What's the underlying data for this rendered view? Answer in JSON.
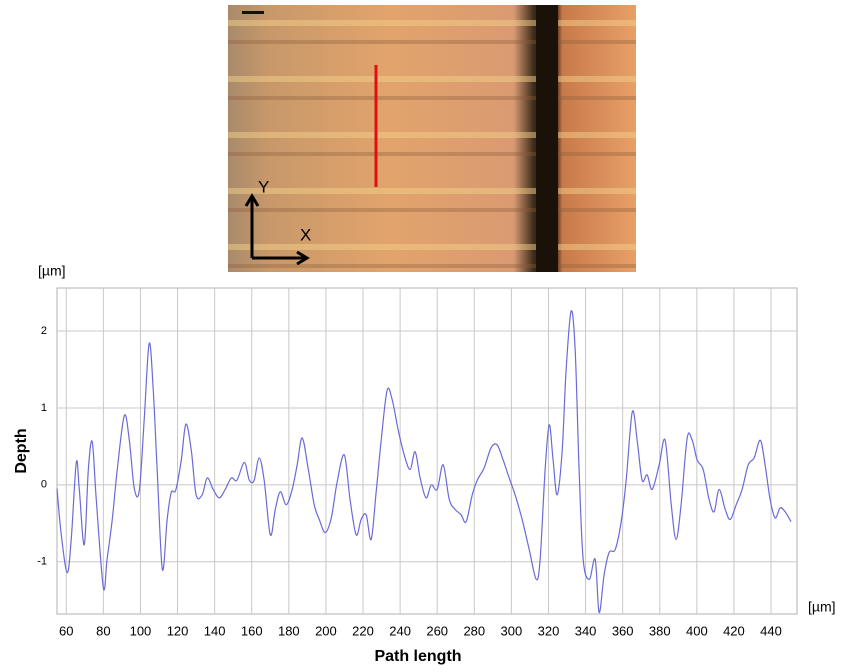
{
  "figure": {
    "image_labels": [
      "Y",
      "X"
    ]
  },
  "chart_data": {
    "type": "line",
    "y_label": "Depth",
    "x_label": "Path length",
    "y_unit": "[µm]",
    "x_unit": "[µm]",
    "xlim": [
      55,
      454
    ],
    "ylim": [
      -1.68,
      2.56
    ],
    "xticks": [
      60,
      80,
      100,
      120,
      140,
      160,
      180,
      200,
      220,
      240,
      260,
      280,
      300,
      320,
      340,
      360,
      380,
      400,
      420,
      440
    ],
    "yticks": [
      -1,
      0,
      1,
      2
    ],
    "grid": true,
    "series": [
      {
        "name": "Depth",
        "color": "#6a6ad8",
        "x": [
          55,
          57.3,
          60.5,
          62.7,
          65.4,
          67,
          69.7,
          71.9,
          74,
          76.2,
          80,
          82,
          84.8,
          87.5,
          91.3,
          94,
          96.7,
          99.4,
          102,
          104.7,
          106.9,
          109,
          111.8,
          114.4,
          116.6,
          119,
          122,
          124.5,
          127.4,
          130,
          133.3,
          136,
          139.2,
          142.5,
          145.7,
          149,
          152,
          156,
          158.7,
          161.3,
          164,
          166.7,
          170,
          172.7,
          175.4,
          178.6,
          181.8,
          184.5,
          187.2,
          190.5,
          193.7,
          196.4,
          199.6,
          202.9,
          206,
          209.9,
          213,
          216.3,
          219,
          221.7,
          224.4,
          227.1,
          229.8,
          233,
          235.8,
          239,
          242.2,
          245.4,
          248.1,
          250.8,
          254,
          256.8,
          260,
          263.2,
          266.5,
          269.7,
          272.9,
          275.6,
          278.9,
          281.6,
          285.3,
          289,
          292.3,
          295.6,
          298.8,
          302,
          305.8,
          309.6,
          313.4,
          315.5,
          318.2,
          320.4,
          322.5,
          324.7,
          327.4,
          329.5,
          332.2,
          334.4,
          336.5,
          338.7,
          342,
          345.2,
          347.3,
          350,
          352.7,
          356,
          359.2,
          361.9,
          365.2,
          367.9,
          370.5,
          373.2,
          375.9,
          379.7,
          382.9,
          386.2,
          388.8,
          391.5,
          394.8,
          397.5,
          400.2,
          403.4,
          406.6,
          409.3,
          412,
          415.3,
          418,
          421.2,
          424.4,
          427.7,
          430.9,
          434.2,
          436.8,
          439.5,
          442.2,
          444.9,
          447.6,
          450.8
        ],
        "values": [
          -0.05,
          -0.65,
          -1.14,
          -0.7,
          0.29,
          -0.05,
          -0.78,
          0.2,
          0.56,
          -0.2,
          -1.34,
          -0.97,
          -0.45,
          0.2,
          0.9,
          0.58,
          -0.05,
          -0.07,
          0.84,
          1.84,
          1.23,
          0.2,
          -1.1,
          -0.45,
          -0.1,
          -0.07,
          0.32,
          0.79,
          0.45,
          -0.13,
          -0.13,
          0.09,
          -0.06,
          -0.17,
          -0.06,
          0.09,
          0.06,
          0.29,
          0.06,
          0.06,
          0.35,
          0.06,
          -0.65,
          -0.32,
          -0.09,
          -0.26,
          -0.06,
          0.26,
          0.61,
          0.2,
          -0.26,
          -0.45,
          -0.62,
          -0.43,
          0.03,
          0.39,
          -0.19,
          -0.65,
          -0.45,
          -0.39,
          -0.71,
          -0.09,
          0.58,
          1.23,
          1.1,
          0.71,
          0.39,
          0.2,
          0.43,
          0.09,
          -0.17,
          0,
          -0.06,
          0.26,
          -0.19,
          -0.32,
          -0.39,
          -0.48,
          -0.13,
          0.06,
          0.22,
          0.48,
          0.52,
          0.32,
          0.09,
          -0.13,
          -0.45,
          -0.84,
          -1.23,
          -0.97,
          0.2,
          0.78,
          0.32,
          -0.13,
          0.45,
          1.49,
          2.26,
          1.75,
          0.2,
          -0.97,
          -1.23,
          -0.97,
          -1.66,
          -1.17,
          -0.88,
          -0.84,
          -0.48,
          0.06,
          0.95,
          0.56,
          0.06,
          0.13,
          -0.06,
          0.26,
          0.58,
          -0.26,
          -0.71,
          -0.26,
          0.61,
          0.58,
          0.32,
          0.2,
          -0.19,
          -0.35,
          -0.06,
          -0.32,
          -0.45,
          -0.26,
          -0.06,
          0.26,
          0.35,
          0.58,
          0.26,
          -0.19,
          -0.43,
          -0.3,
          -0.35,
          -0.48
        ]
      }
    ]
  }
}
